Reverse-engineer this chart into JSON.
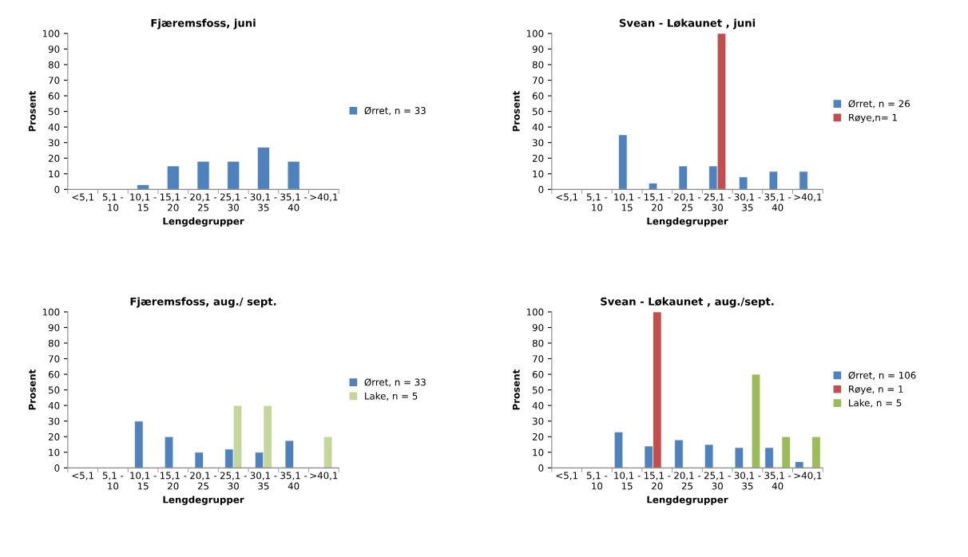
{
  "chart_data": [
    {
      "type": "bar",
      "title": "Fjæremsfoss, juni",
      "xlabel": "Lengdegrupper",
      "ylabel": "Prosent",
      "categories": [
        "<5,1",
        "5,1 -\n10",
        "10,1 -\n15",
        "15,1 -\n20",
        "20,1 -\n25",
        "25,1 -\n30",
        "30,1 -\n35",
        "35,1 -\n40",
        ">40,1"
      ],
      "ylim": [
        0,
        100
      ],
      "yticks": [
        0,
        10,
        20,
        30,
        40,
        50,
        60,
        70,
        80,
        90,
        100
      ],
      "grid": false,
      "legend": "right",
      "series": [
        {
          "name": "Ørret, n = 33",
          "color": "#4f81bd",
          "values": [
            null,
            null,
            3,
            15,
            18,
            18,
            27,
            18,
            null
          ]
        }
      ]
    },
    {
      "type": "bar",
      "title": "Svean - Løkaunet , juni",
      "xlabel": "Lengdegrupper",
      "ylabel": "Prosent",
      "categories": [
        "<5,1",
        "5,1 -\n10",
        "10,1 -\n15",
        "15,1 -\n20",
        "20,1 -\n25",
        "25,1 -\n30",
        "30,1 -\n35",
        "35,1 -\n40",
        ">40,1"
      ],
      "ylim": [
        0,
        100
      ],
      "yticks": [
        0,
        10,
        20,
        30,
        40,
        50,
        60,
        70,
        80,
        90,
        100
      ],
      "grid": false,
      "legend": "right",
      "series": [
        {
          "name": "Ørret, n = 26",
          "color": "#4f81bd",
          "values": [
            null,
            null,
            35,
            4,
            15,
            15,
            8,
            11.5,
            11.5
          ]
        },
        {
          "name": "Røye,n= 1",
          "color": "#c0504d",
          "values": [
            null,
            null,
            null,
            null,
            null,
            100,
            null,
            null,
            null
          ]
        }
      ]
    },
    {
      "type": "bar",
      "title": "Fjæremsfoss, aug./ sept.",
      "xlabel": "Lengdegrupper",
      "ylabel": "Prosent",
      "categories": [
        "<5,1",
        "5,1 -\n10",
        "10,1 -\n15",
        "15,1 -\n20",
        "20,1 -\n25",
        "25,1 -\n30",
        "30,1 -\n35",
        "35,1 -\n40",
        ">40,1"
      ],
      "ylim": [
        0,
        100
      ],
      "yticks": [
        0,
        10,
        20,
        30,
        40,
        50,
        60,
        70,
        80,
        90,
        100
      ],
      "grid": false,
      "legend": "right",
      "series": [
        {
          "name": "Ørret, n = 33",
          "color": "#4f81bd",
          "values": [
            null,
            null,
            30,
            20,
            10,
            12,
            10,
            17.5,
            null
          ]
        },
        {
          "name": "Lake, n = 5",
          "color": "#c3d69b",
          "values": [
            null,
            null,
            null,
            null,
            null,
            40,
            40,
            null,
            20
          ]
        }
      ]
    },
    {
      "type": "bar",
      "title": "Svean - Løkaunet , aug./sept.",
      "xlabel": "Lengdegrupper",
      "ylabel": "Prosent",
      "categories": [
        "<5,1",
        "5,1 -\n10",
        "10,1 -\n15",
        "15,1 -\n20",
        "20,1 -\n25",
        "25,1 -\n30",
        "30,1 -\n35",
        "35,1 -\n40",
        ">40,1"
      ],
      "ylim": [
        0,
        100
      ],
      "yticks": [
        0,
        10,
        20,
        30,
        40,
        50,
        60,
        70,
        80,
        90,
        100
      ],
      "grid": false,
      "legend": "right",
      "series": [
        {
          "name": "Ørret, n = 106",
          "color": "#4f81bd",
          "values": [
            null,
            null,
            23,
            14,
            18,
            15,
            13,
            13,
            4
          ]
        },
        {
          "name": "Røye, n = 1",
          "color": "#c0504d",
          "values": [
            null,
            null,
            null,
            100,
            null,
            null,
            null,
            null,
            null
          ]
        },
        {
          "name": "Lake, n = 5",
          "color": "#9bbb59",
          "values": [
            null,
            null,
            null,
            null,
            null,
            null,
            60,
            20,
            20
          ]
        }
      ]
    }
  ]
}
